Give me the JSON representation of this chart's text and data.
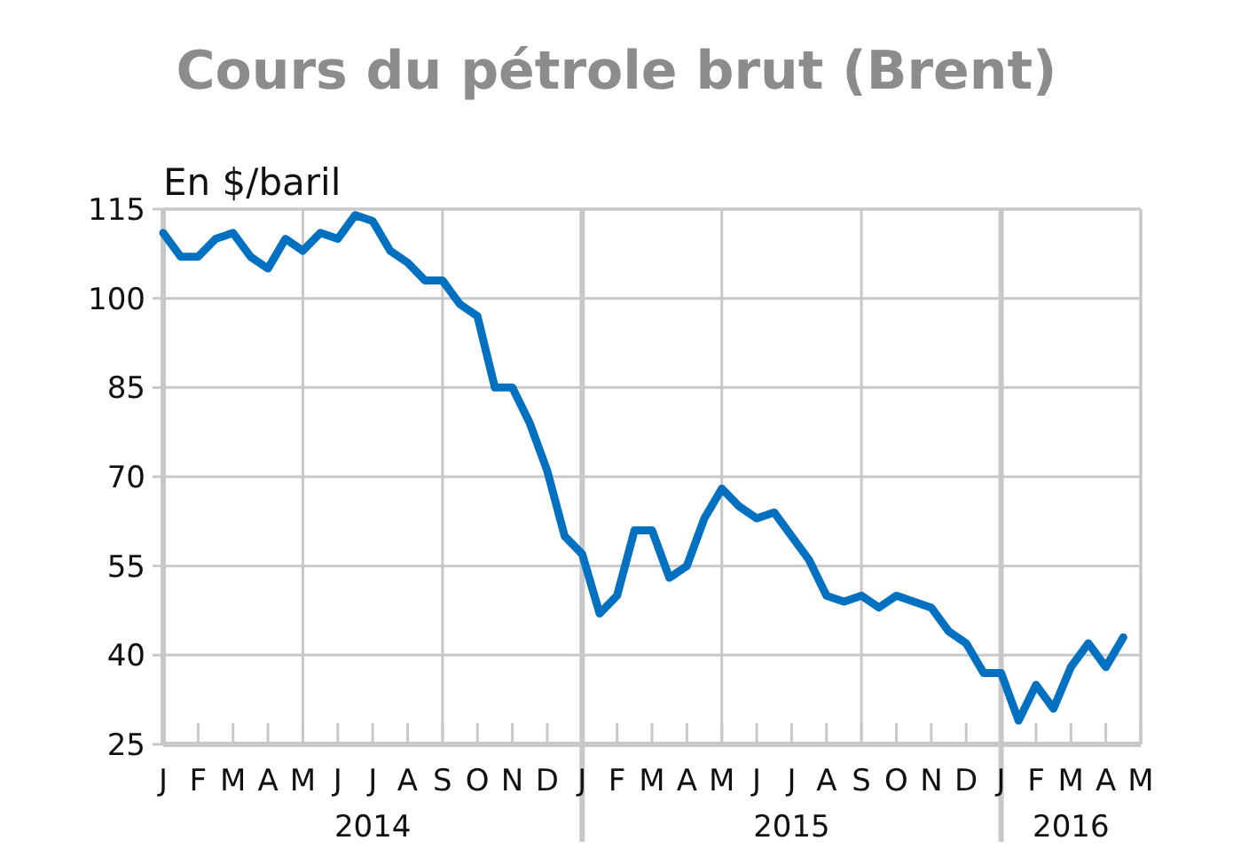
{
  "chart_data": {
    "type": "line",
    "title": "Cours du pétrole brut (Brent)",
    "ylabel": "En $/baril",
    "categories": [
      "J",
      null,
      "F",
      null,
      "M",
      null,
      "A",
      null,
      "M",
      null,
      "J",
      null,
      "J",
      null,
      "A",
      null,
      "S",
      null,
      "O",
      null,
      "N",
      null,
      "D",
      null,
      "J",
      null,
      "F",
      null,
      "M",
      null,
      "A",
      null,
      "M",
      null,
      "J",
      null,
      "J",
      null,
      "A",
      null,
      "S",
      null,
      "O",
      null,
      "N",
      null,
      "D",
      null,
      "J",
      null,
      "F",
      null,
      "M",
      null,
      "A",
      null,
      "M"
    ],
    "ylim": [
      25,
      115
    ],
    "yticks": [
      25,
      40,
      55,
      70,
      85,
      100,
      115
    ],
    "grid": true,
    "annotations": [
      "2014",
      "2015",
      "2016"
    ],
    "series": [
      {
        "color": "#0070c0",
        "values": [
          111,
          107,
          107,
          110,
          111,
          107,
          105,
          110,
          108,
          111,
          110,
          114,
          113,
          108,
          106,
          103,
          103,
          99,
          97,
          85,
          85,
          79,
          71,
          60,
          57,
          47,
          50,
          61,
          61,
          53,
          55,
          63,
          68,
          65,
          63,
          64,
          60,
          56,
          50,
          49,
          50,
          48,
          50,
          49,
          48,
          44,
          42,
          37,
          37,
          29,
          35,
          31,
          38,
          42,
          38,
          43,
          null
        ]
      }
    ]
  }
}
